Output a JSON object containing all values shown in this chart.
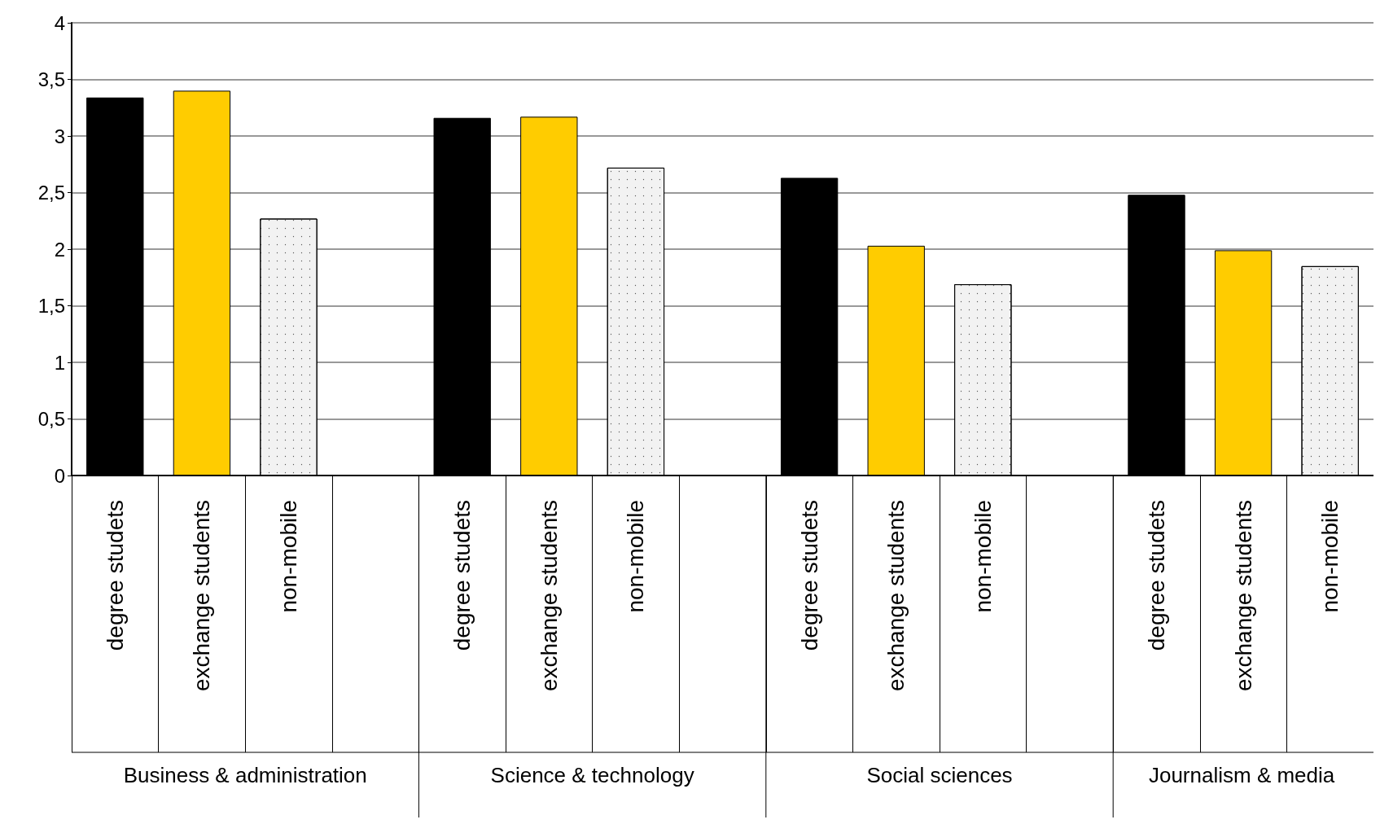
{
  "chart_data": {
    "type": "bar",
    "categories": [
      "degree studets",
      "exchange students",
      "non-mobile",
      null,
      "degree studets",
      "exchange students",
      "non-mobile",
      null,
      "degree studets",
      "exchange students",
      "non-mobile",
      null,
      "degree studets",
      "exchange students",
      "non-mobile"
    ],
    "values": [
      3.34,
      3.4,
      2.27,
      null,
      3.16,
      3.17,
      2.72,
      null,
      2.63,
      2.03,
      1.69,
      null,
      2.48,
      1.99,
      1.85
    ],
    "colors": [
      "#000000",
      "#ffcc00",
      "#f2f2f2",
      null,
      "#000000",
      "#ffcc00",
      "#f2f2f2",
      null,
      "#000000",
      "#ffcc00",
      "#f2f2f2",
      null,
      "#000000",
      "#ffcc00",
      "#f2f2f2"
    ],
    "ylim": [
      0,
      4
    ],
    "yticks": [
      0,
      {
        "value": 0.5,
        "label": "0,5"
      },
      1,
      {
        "value": 1.5,
        "label": "1,5"
      },
      2,
      {
        "value": 2.5,
        "label": "2,5"
      },
      3,
      {
        "value": 3.5,
        "label": "3,5"
      },
      4
    ],
    "grid": "y",
    "annotations": [
      "Business & administration",
      "Science & technology",
      "Social sciences",
      "Journalism & media"
    ]
  }
}
